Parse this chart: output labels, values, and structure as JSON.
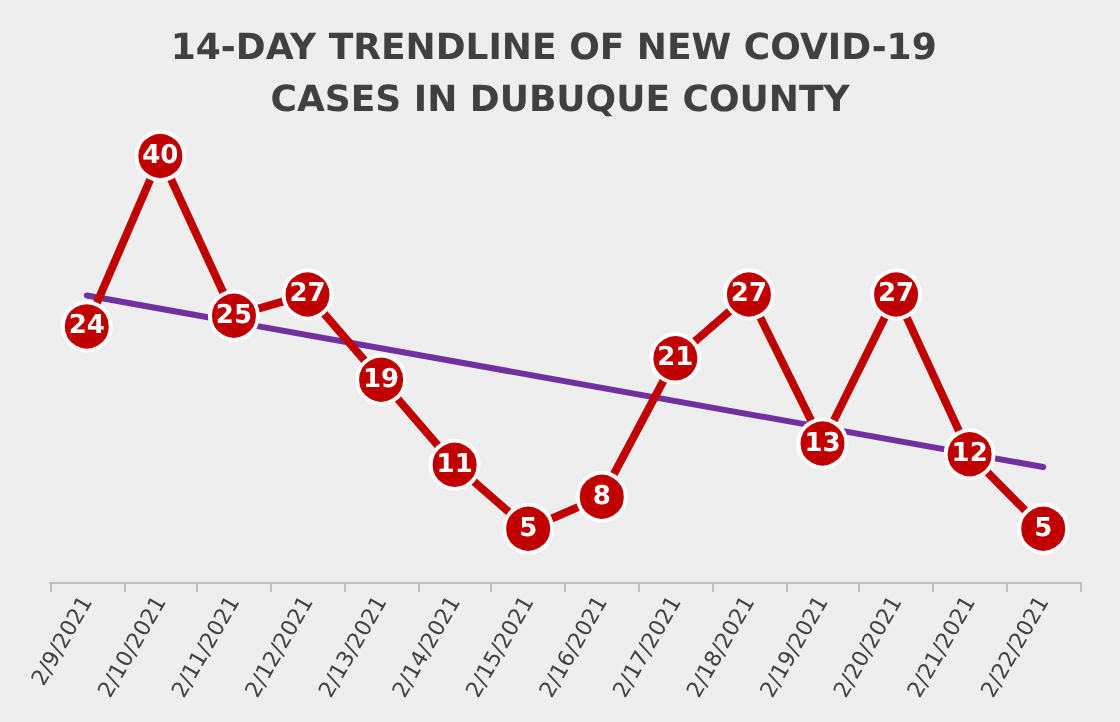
{
  "chart_data": {
    "type": "line",
    "title": "14-DAY TRENDLINE OF NEW COVID-19 CASES IN DUBUQUE COUNTY",
    "categories": [
      "2/9/2021",
      "2/10/2021",
      "2/11/2021",
      "2/12/2021",
      "2/13/2021",
      "2/14/2021",
      "2/15/2021",
      "2/16/2021",
      "2/17/2021",
      "2/18/2021",
      "2/19/2021",
      "2/20/2021",
      "2/21/2021",
      "2/22/2021"
    ],
    "series": [
      {
        "color": "#c00000",
        "marker": "circle",
        "values": [
          24,
          40,
          25,
          27,
          19,
          11,
          5,
          8,
          21,
          27,
          13,
          27,
          12,
          5
        ],
        "value_labels": [
          "24",
          "40",
          "25",
          "27",
          "19",
          "11",
          "5",
          "8",
          "21",
          "27",
          "13",
          "27",
          "12",
          "5"
        ]
      },
      {
        "type": "line",
        "color": "#7030a0",
        "marker": "none",
        "x": [
          "2/9/2021",
          "2/22/2021"
        ],
        "values": [
          26.9,
          10.8
        ]
      }
    ],
    "grid": false,
    "line_style": "solid"
  }
}
